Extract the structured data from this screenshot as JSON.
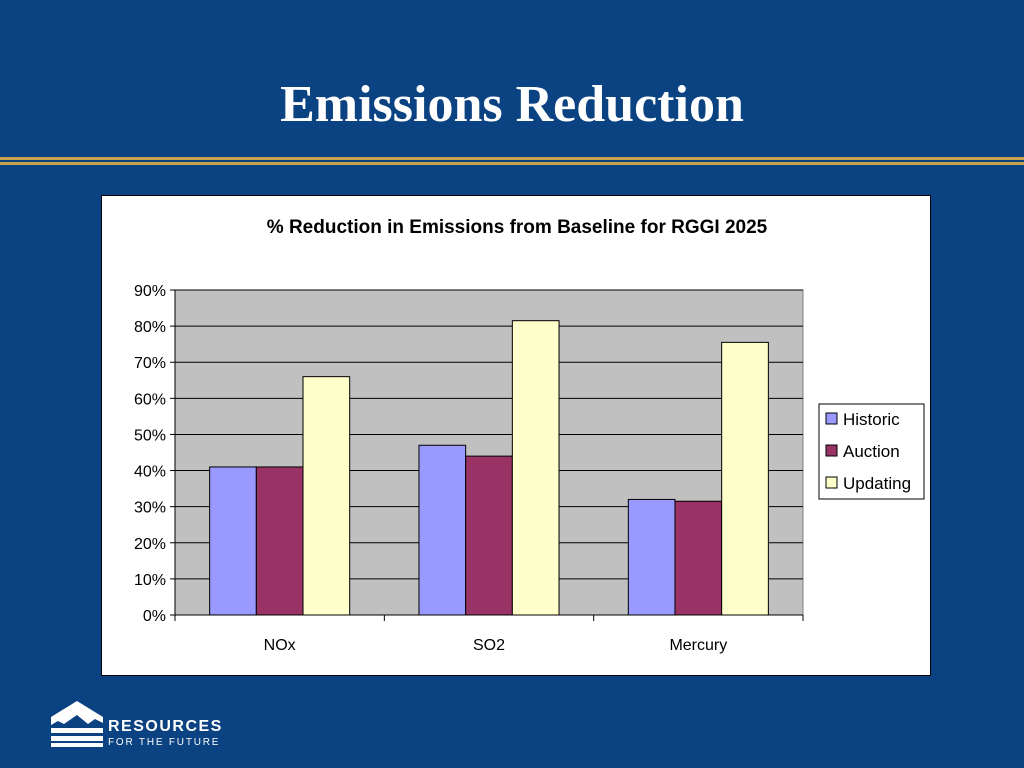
{
  "slide": {
    "title": "Emissions Reduction"
  },
  "chart_data": {
    "type": "bar",
    "title": "% Reduction in Emissions from Baseline for RGGI 2025",
    "xlabel": "",
    "ylabel": "",
    "categories": [
      "NOx",
      "SO2",
      "Mercury"
    ],
    "series": [
      {
        "name": "Historic",
        "values": [
          41,
          47,
          32
        ],
        "color": "#9999ff"
      },
      {
        "name": "Auction",
        "values": [
          41,
          44,
          31.5
        ],
        "color": "#993366"
      },
      {
        "name": "Updating",
        "values": [
          66,
          81.5,
          75.5
        ],
        "color": "#ffffcc"
      }
    ],
    "ylim": [
      0,
      90
    ],
    "yticks": [
      "0%",
      "10%",
      "20%",
      "30%",
      "40%",
      "50%",
      "60%",
      "70%",
      "80%",
      "90%"
    ],
    "grid": true,
    "plot_background": "#c0c0c0",
    "legend": "right"
  },
  "logo": {
    "line1": "RESOURCES",
    "line2": "FOR THE FUTURE"
  }
}
